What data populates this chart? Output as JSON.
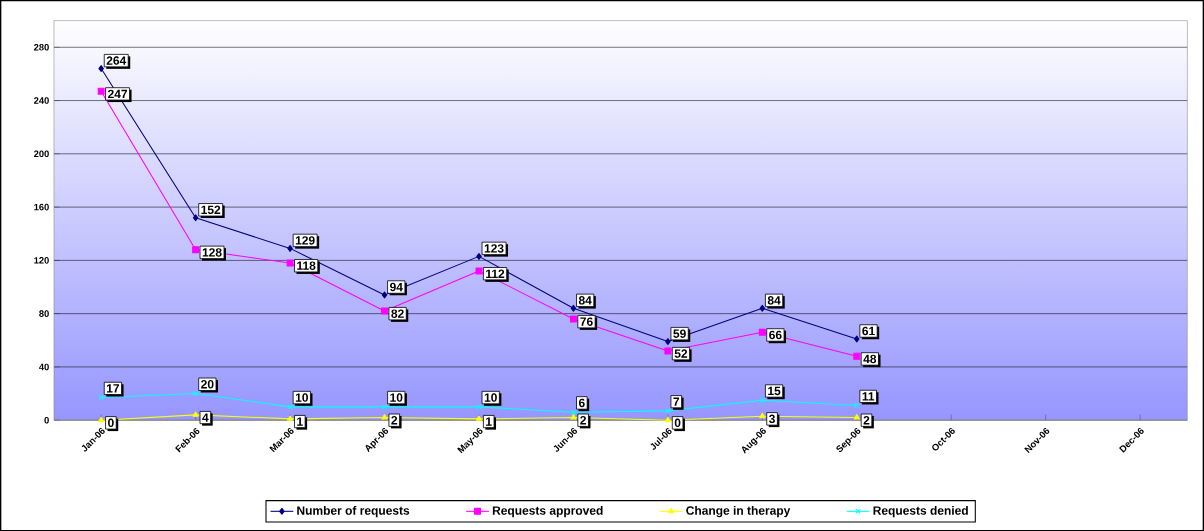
{
  "chart_data": {
    "type": "line",
    "categories": [
      "Jan-06",
      "Feb-06",
      "Mar-06",
      "Apr-06",
      "May-06",
      "Jun-06",
      "Jul-06",
      "Aug-06",
      "Sep-06",
      "Oct-06",
      "Nov-06",
      "Dec-06"
    ],
    "series": [
      {
        "name": "Number of requests",
        "color": "#000080",
        "marker": "diamond",
        "values": [
          264,
          152,
          129,
          94,
          123,
          84,
          59,
          84,
          61,
          null,
          null,
          null
        ]
      },
      {
        "name": "Requests approved",
        "color": "#ff00ff",
        "marker": "square",
        "values": [
          247,
          128,
          118,
          82,
          112,
          76,
          52,
          66,
          48,
          null,
          null,
          null
        ]
      },
      {
        "name": "Change in therapy",
        "color": "#ffff00",
        "marker": "triangle",
        "values": [
          0,
          4,
          1,
          2,
          1,
          2,
          0,
          3,
          2,
          null,
          null,
          null
        ]
      },
      {
        "name": "Requests denied",
        "color": "#00ffff",
        "marker": "cross",
        "values": [
          17,
          20,
          10,
          10,
          10,
          6,
          7,
          15,
          11,
          null,
          null,
          null
        ]
      }
    ],
    "ylim": [
      0,
      300
    ],
    "yticks": [
      0,
      40,
      80,
      120,
      160,
      200,
      240,
      280
    ],
    "grid": "y",
    "legend": "bottom",
    "data_labels": true
  }
}
